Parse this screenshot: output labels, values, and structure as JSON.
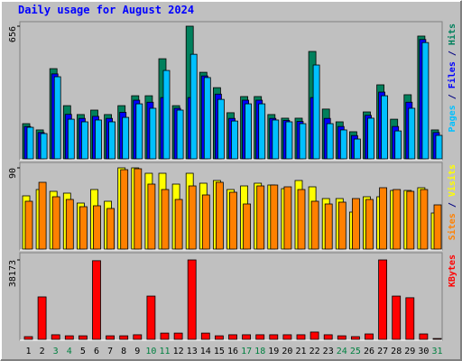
{
  "chart_data": [
    {
      "type": "bar",
      "title": "Daily usage for August 2024",
      "series": [
        {
          "name": "Pages",
          "color": "#00c0ff",
          "values": [
            156,
            125,
            406,
            196,
            183,
            192,
            183,
            205,
            272,
            250,
            437,
            241,
            517,
            402,
            294,
            187,
            272,
            272,
            192,
            183,
            174,
            464,
            174,
            143,
            98,
            201,
            312,
            138,
            250,
            575,
            116
          ]
        },
        {
          "name": "Files",
          "color": "#0000ff",
          "values": [
            160,
            130,
            420,
            220,
            200,
            210,
            200,
            230,
            290,
            280,
            303,
            250,
            303,
            410,
            320,
            200,
            290,
            290,
            200,
            190,
            185,
            303,
            200,
            160,
            115,
            215,
            330,
            160,
            280,
            590,
            130
          ]
        },
        {
          "name": "Hits",
          "color": "#00805c",
          "values": [
            174,
            143,
            446,
            263,
            219,
            241,
            219,
            263,
            312,
            312,
            495,
            263,
            656,
            428,
            352,
            228,
            308,
            308,
            219,
            201,
            201,
            531,
            246,
            183,
            134,
            232,
            366,
            196,
            317,
            607,
            143
          ]
        }
      ],
      "ylim": [
        0,
        656
      ],
      "yticks": [
        656
      ],
      "legend_separator": " / "
    },
    {
      "type": "bar",
      "series": [
        {
          "name": "Sites",
          "color": "#ff8000",
          "values": [
            53,
            74,
            58,
            55,
            47,
            48,
            45,
            88,
            89,
            72,
            66,
            55,
            70,
            60,
            74,
            63,
            50,
            70,
            71,
            69,
            66,
            53,
            50,
            52,
            56,
            55,
            68,
            66,
            64,
            66,
            49
          ]
        },
        {
          "name": "Visits",
          "color": "#ffff00",
          "values": [
            59,
            66,
            64,
            62,
            51,
            66,
            53,
            90,
            90,
            84,
            84,
            72,
            84,
            73,
            76,
            66,
            70,
            73,
            71,
            67,
            76,
            69,
            56,
            56,
            41,
            58,
            58,
            65,
            65,
            68,
            40
          ]
        }
      ],
      "ylim": [
        0,
        90
      ],
      "yticks": [
        90
      ],
      "legend_separator": " / "
    },
    {
      "type": "bar",
      "categories": [
        "1",
        "2",
        "3",
        "4",
        "5",
        "6",
        "7",
        "8",
        "9",
        "10",
        "11",
        "12",
        "13",
        "14",
        "15",
        "16",
        "17",
        "18",
        "19",
        "20",
        "21",
        "22",
        "23",
        "24",
        "25",
        "26",
        "27",
        "28",
        "29",
        "30",
        "31"
      ],
      "category_colors": [
        "#000000",
        "#000000",
        "#008040",
        "#008040",
        "#000000",
        "#000000",
        "#000000",
        "#000000",
        "#000000",
        "#008040",
        "#008040",
        "#000000",
        "#000000",
        "#000000",
        "#000000",
        "#000000",
        "#008040",
        "#008040",
        "#000000",
        "#000000",
        "#000000",
        "#000000",
        "#000000",
        "#008040",
        "#008040",
        "#000000",
        "#000000",
        "#000000",
        "#000000",
        "#000000",
        "#008040"
      ],
      "series": [
        {
          "name": "KBytes",
          "color": "#ff0000",
          "values": [
            1300,
            20400,
            2200,
            1700,
            1700,
            37800,
            1700,
            1700,
            2200,
            20800,
            3000,
            3000,
            38173,
            3000,
            1700,
            2200,
            2200,
            2200,
            2200,
            2200,
            2200,
            3500,
            2200,
            1700,
            1300,
            2600,
            38173,
            20800,
            20000,
            2600,
            400
          ]
        }
      ],
      "ylim": [
        0,
        38173
      ],
      "yticks": [
        38173
      ]
    }
  ]
}
